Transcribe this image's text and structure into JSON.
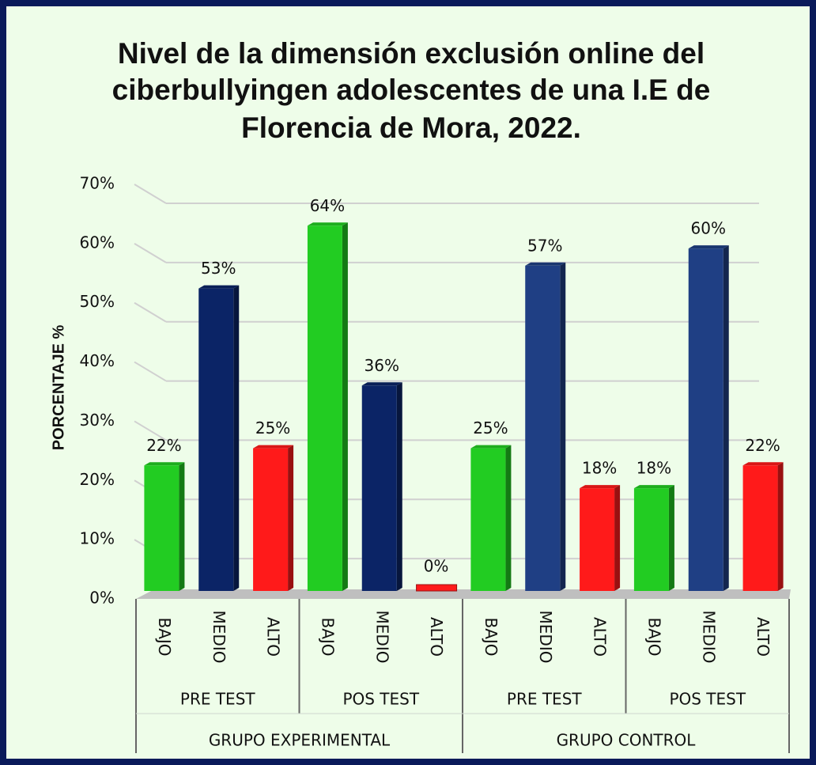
{
  "chart_data": {
    "type": "bar3d",
    "title": [
      "Nivel de la dimensión exclusión online del",
      "ciberbullyingen adolescentes de una I.E de",
      "Florencia de Mora, 2022."
    ],
    "y_label": "PORCENTAJE %",
    "categories": [
      "BAJO",
      "MEDIO",
      "ALTO",
      "BAJO",
      "MEDIO",
      "ALTO",
      "BAJO",
      "MEDIO",
      "ALTO",
      "BAJO",
      "MEDIO",
      "ALTO"
    ],
    "subgroups": [
      "PRE TEST",
      "POS TEST",
      "PRE TEST",
      "POS TEST"
    ],
    "groups": [
      "GRUPO EXPERIMENTAL",
      "GRUPO CONTROL"
    ],
    "values": [
      22,
      53,
      25,
      64,
      36,
      0,
      25,
      57,
      18,
      18,
      60,
      22
    ],
    "value_labels": [
      "22%",
      "53%",
      "25%",
      "64%",
      "36%",
      "0%",
      "25%",
      "57%",
      "18%",
      "18%",
      "60%",
      "22%"
    ],
    "colors": [
      "#22cc22",
      "#0b2466",
      "#ff1a1a",
      "#22cc22",
      "#0b2466",
      "#ff1a1a",
      "#22cc22",
      "#1f3f84",
      "#ff1a1a",
      "#22cc22",
      "#1f3f84",
      "#ff1a1a"
    ],
    "ylim": [
      0,
      70
    ],
    "yticks": [
      {
        "value": 0,
        "label": "0%"
      },
      {
        "value": 10,
        "label": "10%"
      },
      {
        "value": 20,
        "label": "20%"
      },
      {
        "value": 30,
        "label": "30%"
      },
      {
        "value": 40,
        "label": "40%"
      },
      {
        "value": 50,
        "label": "50%"
      },
      {
        "value": 60,
        "label": "60%"
      },
      {
        "value": 70,
        "label": "70%"
      }
    ],
    "grid": true
  }
}
